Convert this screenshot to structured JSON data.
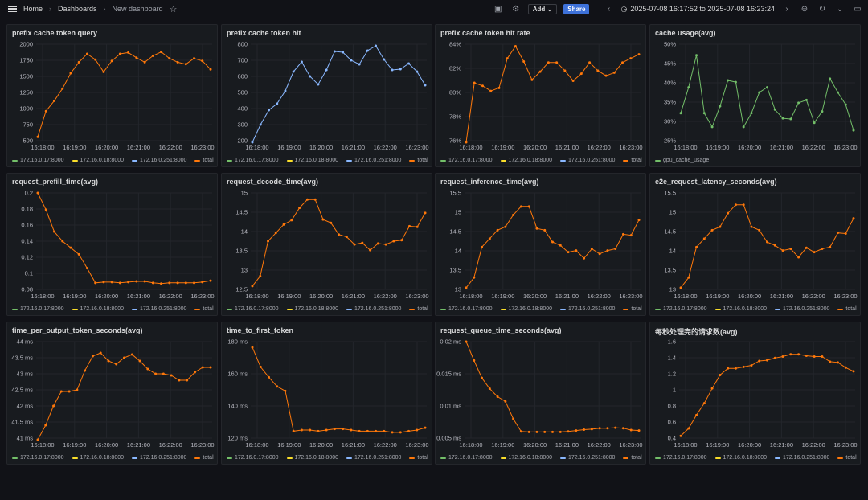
{
  "breadcrumb": {
    "home": "Home",
    "dashboards": "Dashboards",
    "current": "New dashboard"
  },
  "toolbar": {
    "add": "Add",
    "share": "Share",
    "time_range": "2025-07-08 16:17:52 to 2025-07-08 16:23:24"
  },
  "colors": {
    "green": "#73bf69",
    "yellow": "#fade2a",
    "blue": "#8ab8ff",
    "orange": "#ff780a",
    "grid": "#23262b"
  },
  "icons": [
    "menu-icon",
    "star-icon",
    "save-icon",
    "gear-icon",
    "chevron-down-icon",
    "chevron-left-icon",
    "clock-icon",
    "chevron-right-icon",
    "zoom-out-icon",
    "refresh-icon",
    "tv-icon"
  ],
  "x_ticks": [
    "16:18:00",
    "16:19:00",
    "16:20:00",
    "16:21:00",
    "16:22:00",
    "16:23:00"
  ],
  "legend_default": [
    {
      "name": "172.16.0.17:8000",
      "color": "#73bf69"
    },
    {
      "name": "172.16.0.18:8000",
      "color": "#fade2a"
    },
    {
      "name": "172.16.0.251:8000",
      "color": "#8ab8ff"
    },
    {
      "name": "total",
      "color": "#ff780a"
    }
  ],
  "panels": [
    {
      "title": "prefix cache token query",
      "yticks": [
        "500",
        "750",
        "1000",
        "1250",
        "1500",
        "1750",
        "2000"
      ],
      "ymin": 500,
      "ymax": 2000,
      "color": "#ff780a",
      "chart_data": {
        "type": "line",
        "series": [
          {
            "name": "total",
            "values": [
              560,
              960,
              1120,
              1310,
              1550,
              1720,
              1850,
              1760,
              1570,
              1740,
              1850,
              1870,
              1790,
              1720,
              1820,
              1880,
              1780,
              1720,
              1690,
              1780,
              1740,
              1610
            ]
          }
        ],
        "ylim": [
          500,
          2000
        ]
      }
    },
    {
      "title": "prefix cache token hit",
      "yticks": [
        "200",
        "300",
        "400",
        "500",
        "600",
        "700",
        "800"
      ],
      "ymin": 200,
      "ymax": 800,
      "color": "#8ab8ff",
      "chart_data": {
        "type": "line",
        "series": [
          {
            "name": "172.16.0.251:8000",
            "values": [
              160,
              300,
              390,
              430,
              510,
              630,
              690,
              600,
              550,
              640,
              755,
              750,
              700,
              675,
              760,
              790,
              705,
              640,
              645,
              680,
              630,
              545
            ]
          }
        ],
        "ylim": [
          200,
          800
        ]
      }
    },
    {
      "title": "prefix cache token hit rate",
      "yticks": [
        "76%",
        "78%",
        "80%",
        "82%",
        "84%"
      ],
      "ymin": 75.5,
      "ymax": 85,
      "color": "#ff780a",
      "chart_data": {
        "type": "line",
        "series": [
          {
            "name": "total",
            "values": [
              75.2,
              81.2,
              80.9,
              80.4,
              80.7,
              83.6,
              84.8,
              83.3,
              81.5,
              82.3,
              83.2,
              83.2,
              82.4,
              81.4,
              82.1,
              83.2,
              82.4,
              81.9,
              82.2,
              83.2,
              83.6,
              84.0
            ]
          }
        ],
        "ylim": [
          75.5,
          85
        ]
      }
    },
    {
      "title": "cache usage(avg)",
      "yticks": [
        "25%",
        "30%",
        "35%",
        "40%",
        "45%",
        "50%"
      ],
      "ymin": 23,
      "ymax": 51,
      "color": "#73bf69",
      "legend": [
        {
          "name": "gpu_cache_usage",
          "color": "#73bf69"
        }
      ],
      "chart_data": {
        "type": "line",
        "series": [
          {
            "name": "gpu_cache_usage",
            "values": [
              31,
              38.5,
              47.8,
              31,
              27,
              33,
              40.5,
              40,
              27,
              31,
              37,
              38.5,
              32,
              29.5,
              29.3,
              34,
              34.8,
              28.2,
              31.5,
              41,
              37,
              33.5,
              26
            ]
          }
        ],
        "ylim": [
          23,
          51
        ]
      }
    },
    {
      "title": "request_prefill_time(avg)",
      "yticks": [
        "0.08",
        "0.1",
        "0.12",
        "0.14",
        "0.16",
        "0.18",
        "0.2"
      ],
      "ymin": 0.073,
      "ymax": 0.205,
      "color": "#ff780a",
      "chart_data": {
        "type": "line",
        "series": [
          {
            "name": "total",
            "values": [
              0.205,
              0.182,
              0.152,
              0.139,
              0.13,
              0.121,
              0.102,
              0.082,
              0.083,
              0.083,
              0.082,
              0.083,
              0.084,
              0.084,
              0.082,
              0.081,
              0.082,
              0.082,
              0.082,
              0.082,
              0.083,
              0.085
            ]
          }
        ],
        "ylim": [
          0.073,
          0.205
        ]
      }
    },
    {
      "title": "request_decode_time(avg)",
      "yticks": [
        "12.5",
        "13",
        "13.5",
        "14",
        "14.5",
        "15"
      ],
      "ymin": 12.4,
      "ymax": 15.3,
      "color": "#ff780a",
      "chart_data": {
        "type": "line",
        "series": [
          {
            "name": "total",
            "values": [
              12.5,
              12.8,
              13.85,
              14.1,
              14.35,
              14.48,
              14.85,
              15.1,
              15.1,
              14.5,
              14.4,
              14.05,
              13.98,
              13.75,
              13.8,
              13.58,
              13.78,
              13.75,
              13.85,
              13.88,
              14.3,
              14.28,
              14.7
            ]
          }
        ],
        "ylim": [
          12.4,
          15.3
        ]
      }
    },
    {
      "title": "request_inference_time(avg)",
      "yticks": [
        "13",
        "13.5",
        "14",
        "14.5",
        "15",
        "15.5"
      ],
      "ymin": 12.75,
      "ymax": 15.6,
      "color": "#ff780a",
      "chart_data": {
        "type": "line",
        "series": [
          {
            "name": "total",
            "values": [
              12.8,
              13.1,
              14.0,
              14.25,
              14.5,
              14.6,
              14.95,
              15.2,
              15.2,
              14.55,
              14.5,
              14.15,
              14.05,
              13.85,
              13.9,
              13.67,
              13.95,
              13.8,
              13.9,
              13.95,
              14.38,
              14.35,
              14.8
            ]
          }
        ],
        "ylim": [
          12.75,
          15.6
        ]
      }
    },
    {
      "title": "e2e_request_latency_seconds(avg)",
      "yticks": [
        "13",
        "13.5",
        "14",
        "14.5",
        "15",
        "15.5"
      ],
      "ymin": 12.75,
      "ymax": 15.6,
      "color": "#ff780a",
      "chart_data": {
        "type": "line",
        "series": [
          {
            "name": "total",
            "values": [
              12.8,
              13.1,
              14.0,
              14.25,
              14.5,
              14.6,
              15.0,
              15.25,
              15.25,
              14.6,
              14.5,
              14.15,
              14.05,
              13.9,
              13.95,
              13.7,
              13.98,
              13.85,
              13.95,
              14.0,
              14.42,
              14.4,
              14.85
            ]
          }
        ],
        "ylim": [
          12.75,
          15.6
        ]
      }
    },
    {
      "title": "time_per_output_token_seconds(avg)",
      "yticks": [
        "41 ms",
        "41.5 ms",
        "42 ms",
        "42.5 ms",
        "43 ms",
        "43.5 ms",
        "44 ms"
      ],
      "ymin": 41,
      "ymax": 44,
      "color": "#ff780a",
      "chart_data": {
        "type": "line",
        "series": [
          {
            "name": "total",
            "values": [
              40.9,
              41.4,
              42.0,
              42.45,
              42.45,
              42.5,
              43.1,
              43.55,
              43.65,
              43.4,
              43.3,
              43.5,
              43.6,
              43.4,
              43.15,
              43.0,
              43.0,
              42.95,
              42.8,
              42.8,
              43.05,
              43.2,
              43.2
            ]
          }
        ],
        "ylim": [
          41,
          44
        ]
      }
    },
    {
      "title": "time_to_first_token",
      "yticks": [
        "120 ms",
        "140 ms",
        "160 ms",
        "180 ms"
      ],
      "ymin": 108,
      "ymax": 192,
      "color": "#ff780a",
      "chart_data": {
        "type": "line",
        "series": [
          {
            "name": "total",
            "values": [
              187,
              170,
              161,
              153,
              149,
              114,
              115,
              115,
              114,
              115,
              116,
              116,
              115,
              114,
              114,
              114,
              114,
              113,
              113,
              114,
              115,
              117
            ]
          }
        ],
        "ylim": [
          108,
          192
        ]
      }
    },
    {
      "title": "request_queue_time_seconds(avg)",
      "yticks": [
        "0.005 ms",
        "0.01 ms",
        "0.015 ms",
        "0.02 ms"
      ],
      "ymin": 0.003,
      "ymax": 0.0235,
      "color": "#ff780a",
      "chart_data": {
        "type": "line",
        "series": [
          {
            "name": "total",
            "values": [
              0.0235,
              0.0195,
              0.0158,
              0.0135,
              0.0118,
              0.0108,
              0.0071,
              0.0044,
              0.0043,
              0.0043,
              0.0043,
              0.0043,
              0.0043,
              0.0044,
              0.0046,
              0.0048,
              0.0049,
              0.0051,
              0.0051,
              0.0052,
              0.0051,
              0.0047,
              0.0046
            ]
          }
        ],
        "ylim": [
          0.003,
          0.0235
        ]
      }
    },
    {
      "title": "每秒处理完的请求数(avg)",
      "yticks": [
        "0.4",
        "0.6",
        "0.8",
        "1",
        "1.2",
        "1.4",
        "1.6"
      ],
      "ymin": 0.35,
      "ymax": 1.65,
      "color": "#ff780a",
      "chart_data": {
        "type": "line",
        "series": [
          {
            "name": "total",
            "values": [
              0.38,
              0.48,
              0.66,
              0.82,
              1.02,
              1.2,
              1.29,
              1.29,
              1.31,
              1.33,
              1.39,
              1.4,
              1.43,
              1.45,
              1.48,
              1.48,
              1.46,
              1.45,
              1.45,
              1.38,
              1.37,
              1.3,
              1.25
            ]
          }
        ],
        "ylim": [
          0.35,
          1.65
        ]
      }
    }
  ]
}
